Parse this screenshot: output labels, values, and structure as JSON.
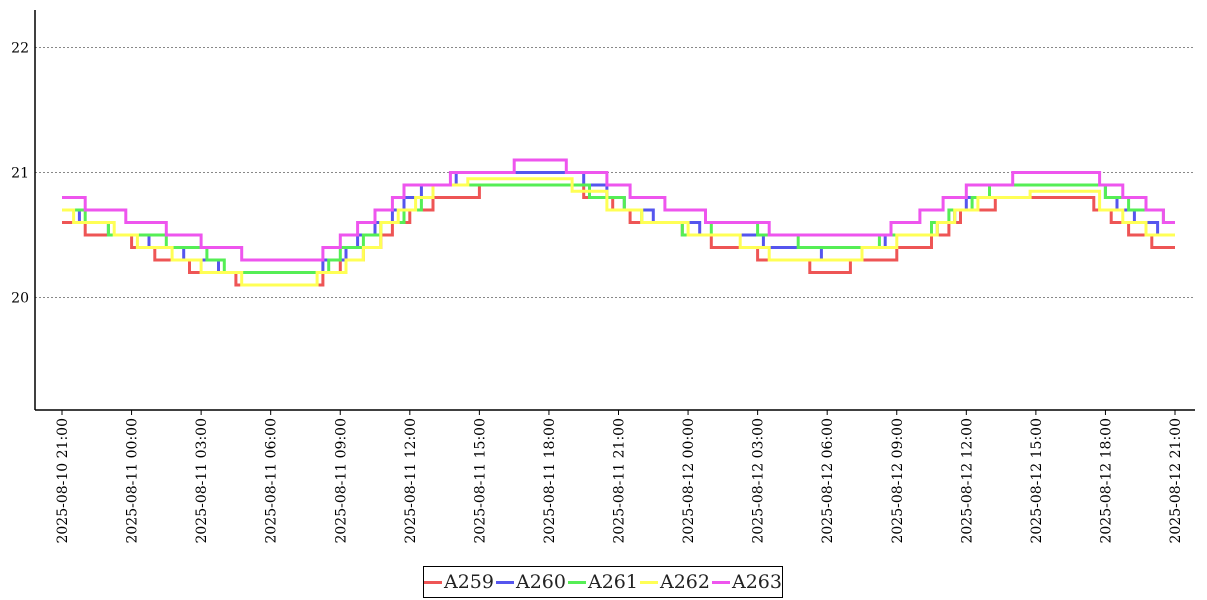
{
  "chart_data": {
    "type": "line",
    "title": "",
    "xlabel": "",
    "ylabel": "",
    "ylim": [
      19.1,
      22.3
    ],
    "yticks": [
      "20",
      "21",
      "22"
    ],
    "grid": "horizontal dotted",
    "legend_position": "bottom-center",
    "x_tick_labels": [
      "2025-08-10 21:00",
      "2025-08-11 00:00",
      "2025-08-11 03:00",
      "2025-08-11 06:00",
      "2025-08-11 09:00",
      "2025-08-11 12:00",
      "2025-08-11 15:00",
      "2025-08-11 18:00",
      "2025-08-11 21:00",
      "2025-08-12 00:00",
      "2025-08-12 03:00",
      "2025-08-12 06:00",
      "2025-08-12 09:00",
      "2025-08-12 12:00",
      "2025-08-12 15:00",
      "2025-08-12 18:00",
      "2025-08-12 21:00"
    ],
    "series": [
      {
        "name": "A259",
        "color": "#ee5555",
        "points": [
          [
            "2025-08-10 21:00",
            20.6
          ],
          [
            "2025-08-10 22:00",
            20.5
          ],
          [
            "2025-08-11 00:00",
            20.4
          ],
          [
            "2025-08-11 01:00",
            20.3
          ],
          [
            "2025-08-11 02:30",
            20.2
          ],
          [
            "2025-08-11 04:30",
            20.1
          ],
          [
            "2025-08-11 08:15",
            20.2
          ],
          [
            "2025-08-11 09:00",
            20.3
          ],
          [
            "2025-08-11 10:00",
            20.4
          ],
          [
            "2025-08-11 10:45",
            20.5
          ],
          [
            "2025-08-11 11:15",
            20.6
          ],
          [
            "2025-08-11 12:00",
            20.7
          ],
          [
            "2025-08-11 13:00",
            20.8
          ],
          [
            "2025-08-11 15:00",
            20.9
          ],
          [
            "2025-08-11 19:30",
            20.8
          ],
          [
            "2025-08-11 20:45",
            20.7
          ],
          [
            "2025-08-11 21:30",
            20.6
          ],
          [
            "2025-08-11 23:45",
            20.5
          ],
          [
            "2025-08-12 01:00",
            20.4
          ],
          [
            "2025-08-12 03:00",
            20.3
          ],
          [
            "2025-08-12 05:15",
            20.2
          ],
          [
            "2025-08-12 07:00",
            20.3
          ],
          [
            "2025-08-12 09:00",
            20.4
          ],
          [
            "2025-08-12 10:30",
            20.5
          ],
          [
            "2025-08-12 11:15",
            20.6
          ],
          [
            "2025-08-12 11:45",
            20.7
          ],
          [
            "2025-08-12 13:15",
            20.8
          ],
          [
            "2025-08-12 17:30",
            20.7
          ],
          [
            "2025-08-12 18:15",
            20.6
          ],
          [
            "2025-08-12 19:00",
            20.5
          ],
          [
            "2025-08-12 20:00",
            20.4
          ],
          [
            "2025-08-12 21:00",
            20.4
          ]
        ]
      },
      {
        "name": "A260",
        "color": "#5555ee",
        "points": [
          [
            "2025-08-10 21:00",
            20.7
          ],
          [
            "2025-08-10 21:45",
            20.6
          ],
          [
            "2025-08-10 23:00",
            20.5
          ],
          [
            "2025-08-11 00:45",
            20.4
          ],
          [
            "2025-08-11 02:15",
            20.3
          ],
          [
            "2025-08-11 03:45",
            20.2
          ],
          [
            "2025-08-11 08:15",
            20.3
          ],
          [
            "2025-08-11 09:15",
            20.4
          ],
          [
            "2025-08-11 09:45",
            20.5
          ],
          [
            "2025-08-11 10:30",
            20.6
          ],
          [
            "2025-08-11 11:15",
            20.7
          ],
          [
            "2025-08-11 11:45",
            20.8
          ],
          [
            "2025-08-11 12:30",
            20.9
          ],
          [
            "2025-08-11 14:00",
            21.0
          ],
          [
            "2025-08-11 19:30",
            20.9
          ],
          [
            "2025-08-11 20:30",
            20.8
          ],
          [
            "2025-08-11 21:15",
            20.7
          ],
          [
            "2025-08-11 22:30",
            20.6
          ],
          [
            "2025-08-12 00:30",
            20.5
          ],
          [
            "2025-08-12 03:15",
            20.4
          ],
          [
            "2025-08-12 05:45",
            20.3
          ],
          [
            "2025-08-12 07:30",
            20.4
          ],
          [
            "2025-08-12 08:30",
            20.5
          ],
          [
            "2025-08-12 10:45",
            20.6
          ],
          [
            "2025-08-12 11:30",
            20.7
          ],
          [
            "2025-08-12 12:00",
            20.8
          ],
          [
            "2025-08-12 13:00",
            20.9
          ],
          [
            "2025-08-12 18:00",
            20.8
          ],
          [
            "2025-08-12 18:30",
            20.7
          ],
          [
            "2025-08-12 19:15",
            20.6
          ],
          [
            "2025-08-12 20:15",
            20.5
          ],
          [
            "2025-08-12 21:00",
            20.5
          ]
        ]
      },
      {
        "name": "A261",
        "color": "#55ee55",
        "points": [
          [
            "2025-08-10 21:00",
            20.7
          ],
          [
            "2025-08-10 22:00",
            20.6
          ],
          [
            "2025-08-10 23:00",
            20.5
          ],
          [
            "2025-08-11 01:30",
            20.4
          ],
          [
            "2025-08-11 03:15",
            20.3
          ],
          [
            "2025-08-11 04:00",
            20.2
          ],
          [
            "2025-08-11 08:30",
            20.3
          ],
          [
            "2025-08-11 09:00",
            20.4
          ],
          [
            "2025-08-11 10:00",
            20.5
          ],
          [
            "2025-08-11 10:45",
            20.6
          ],
          [
            "2025-08-11 11:45",
            20.7
          ],
          [
            "2025-08-11 12:30",
            20.8
          ],
          [
            "2025-08-11 13:00",
            20.9
          ],
          [
            "2025-08-11 19:45",
            20.8
          ],
          [
            "2025-08-11 21:15",
            20.7
          ],
          [
            "2025-08-11 22:00",
            20.6
          ],
          [
            "2025-08-11 23:45",
            20.5
          ],
          [
            "2025-08-12 01:00",
            20.6
          ],
          [
            "2025-08-12 03:00",
            20.5
          ],
          [
            "2025-08-12 04:45",
            20.4
          ],
          [
            "2025-08-12 08:15",
            20.5
          ],
          [
            "2025-08-12 10:30",
            20.6
          ],
          [
            "2025-08-12 11:15",
            20.7
          ],
          [
            "2025-08-12 12:15",
            20.8
          ],
          [
            "2025-08-12 13:00",
            20.9
          ],
          [
            "2025-08-12 18:00",
            20.8
          ],
          [
            "2025-08-12 19:00",
            20.7
          ],
          [
            "2025-08-12 20:30",
            20.6
          ],
          [
            "2025-08-12 21:00",
            20.6
          ]
        ]
      },
      {
        "name": "A262",
        "color": "#ffff55",
        "points": [
          [
            "2025-08-10 21:00",
            20.7
          ],
          [
            "2025-08-10 21:30",
            20.6
          ],
          [
            "2025-08-10 23:15",
            20.5
          ],
          [
            "2025-08-11 00:15",
            20.4
          ],
          [
            "2025-08-11 01:45",
            20.3
          ],
          [
            "2025-08-11 03:00",
            20.2
          ],
          [
            "2025-08-11 04:45",
            20.1
          ],
          [
            "2025-08-11 08:00",
            20.2
          ],
          [
            "2025-08-11 09:15",
            20.3
          ],
          [
            "2025-08-11 10:00",
            20.4
          ],
          [
            "2025-08-11 10:45",
            20.6
          ],
          [
            "2025-08-11 11:30",
            20.7
          ],
          [
            "2025-08-11 12:15",
            20.8
          ],
          [
            "2025-08-11 13:00",
            20.9
          ],
          [
            "2025-08-11 14:30",
            20.95
          ],
          [
            "2025-08-11 19:00",
            20.85
          ],
          [
            "2025-08-11 20:30",
            20.7
          ],
          [
            "2025-08-11 22:00",
            20.6
          ],
          [
            "2025-08-12 00:00",
            20.5
          ],
          [
            "2025-08-12 02:15",
            20.4
          ],
          [
            "2025-08-12 03:30",
            20.3
          ],
          [
            "2025-08-12 07:30",
            20.4
          ],
          [
            "2025-08-12 09:00",
            20.5
          ],
          [
            "2025-08-12 10:45",
            20.6
          ],
          [
            "2025-08-12 11:30",
            20.7
          ],
          [
            "2025-08-12 12:30",
            20.8
          ],
          [
            "2025-08-12 14:45",
            20.85
          ],
          [
            "2025-08-12 17:45",
            20.7
          ],
          [
            "2025-08-12 18:45",
            20.6
          ],
          [
            "2025-08-12 19:45",
            20.5
          ],
          [
            "2025-08-12 21:00",
            20.5
          ]
        ]
      },
      {
        "name": "A263",
        "color": "#ee55ee",
        "points": [
          [
            "2025-08-10 21:00",
            20.8
          ],
          [
            "2025-08-10 22:00",
            20.7
          ],
          [
            "2025-08-10 23:45",
            20.6
          ],
          [
            "2025-08-11 01:30",
            20.5
          ],
          [
            "2025-08-11 03:00",
            20.4
          ],
          [
            "2025-08-11 04:45",
            20.3
          ],
          [
            "2025-08-11 08:15",
            20.4
          ],
          [
            "2025-08-11 09:00",
            20.5
          ],
          [
            "2025-08-11 09:45",
            20.6
          ],
          [
            "2025-08-11 10:30",
            20.7
          ],
          [
            "2025-08-11 11:15",
            20.8
          ],
          [
            "2025-08-11 11:45",
            20.9
          ],
          [
            "2025-08-11 13:45",
            21.0
          ],
          [
            "2025-08-11 16:30",
            21.1
          ],
          [
            "2025-08-11 18:45",
            21.0
          ],
          [
            "2025-08-11 20:30",
            20.9
          ],
          [
            "2025-08-11 21:30",
            20.8
          ],
          [
            "2025-08-11 23:00",
            20.7
          ],
          [
            "2025-08-12 00:45",
            20.6
          ],
          [
            "2025-08-12 03:30",
            20.5
          ],
          [
            "2025-08-12 08:45",
            20.6
          ],
          [
            "2025-08-12 10:00",
            20.7
          ],
          [
            "2025-08-12 11:00",
            20.8
          ],
          [
            "2025-08-12 12:00",
            20.9
          ],
          [
            "2025-08-12 14:00",
            21.0
          ],
          [
            "2025-08-12 17:45",
            20.9
          ],
          [
            "2025-08-12 18:45",
            20.8
          ],
          [
            "2025-08-12 19:45",
            20.7
          ],
          [
            "2025-08-12 20:30",
            20.6
          ],
          [
            "2025-08-12 21:00",
            20.6
          ]
        ]
      }
    ]
  }
}
